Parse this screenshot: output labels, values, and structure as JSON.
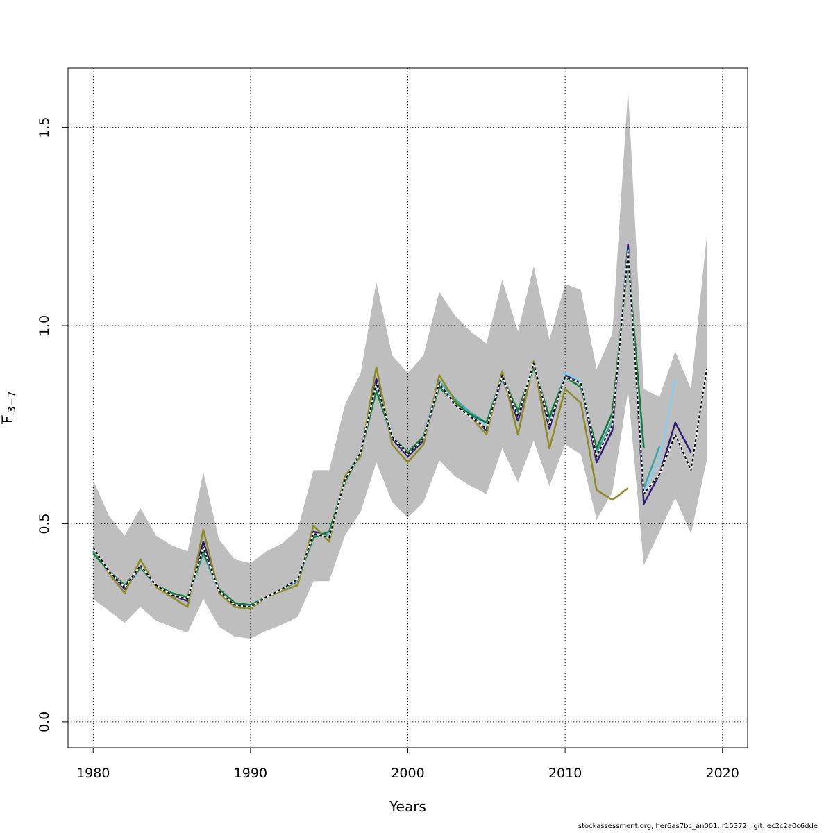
{
  "chart_data": {
    "type": "line",
    "xlabel": "Years",
    "ylabel": "F",
    "ylabel_subscript": "3−7",
    "xlim": [
      1978.4,
      2021.6
    ],
    "ylim": [
      -0.065,
      1.65
    ],
    "x_ticks": [
      1980,
      1990,
      2000,
      2010,
      2020
    ],
    "y_ticks": [
      0.0,
      0.5,
      1.0,
      1.5
    ],
    "x_tick_labels": [
      "1980",
      "1990",
      "2000",
      "2010",
      "2020"
    ],
    "y_tick_labels": [
      "0.0",
      "0.5",
      "1.0",
      "1.5"
    ],
    "grid": true,
    "confidence_band": {
      "color": "#bebebe",
      "x": [
        1980,
        1981,
        1982,
        1983,
        1984,
        1985,
        1986,
        1987,
        1988,
        1989,
        1990,
        1991,
        1992,
        1993,
        1994,
        1995,
        1996,
        1997,
        1998,
        1999,
        2000,
        2001,
        2002,
        2003,
        2004,
        2005,
        2006,
        2007,
        2008,
        2009,
        2010,
        2011,
        2012,
        2013,
        2014,
        2015,
        2016,
        2017,
        2018,
        2019
      ],
      "upper": [
        0.61,
        0.52,
        0.47,
        0.54,
        0.47,
        0.445,
        0.43,
        0.63,
        0.46,
        0.41,
        0.4,
        0.43,
        0.45,
        0.485,
        0.635,
        0.635,
        0.8,
        0.88,
        1.11,
        0.925,
        0.88,
        0.925,
        1.085,
        1.025,
        0.985,
        0.955,
        1.115,
        0.985,
        1.15,
        0.965,
        1.105,
        1.09,
        0.89,
        0.98,
        1.595,
        0.84,
        0.82,
        0.935,
        0.84,
        1.225
      ],
      "lower": [
        0.31,
        0.28,
        0.25,
        0.29,
        0.255,
        0.24,
        0.225,
        0.31,
        0.24,
        0.215,
        0.21,
        0.23,
        0.245,
        0.265,
        0.355,
        0.355,
        0.47,
        0.53,
        0.655,
        0.555,
        0.515,
        0.555,
        0.66,
        0.62,
        0.595,
        0.575,
        0.69,
        0.605,
        0.71,
        0.595,
        0.7,
        0.675,
        0.51,
        0.58,
        0.835,
        0.395,
        0.48,
        0.565,
        0.475,
        0.66
      ]
    },
    "series": [
      {
        "color": "#000000",
        "dashed": true,
        "x": [
          1980,
          1981,
          1982,
          1983,
          1984,
          1985,
          1986,
          1987,
          1988,
          1989,
          1990,
          1991,
          1992,
          1993,
          1994,
          1995,
          1996,
          1997,
          1998,
          1999,
          2000,
          2001,
          2002,
          2003,
          2004,
          2005,
          2006,
          2007,
          2008,
          2009,
          2010,
          2011,
          2012,
          2013,
          2014,
          2015,
          2016,
          2017,
          2018,
          2019
        ],
        "values": [
          0.44,
          0.38,
          0.34,
          0.395,
          0.345,
          0.32,
          0.31,
          0.44,
          0.33,
          0.295,
          0.29,
          0.315,
          0.335,
          0.36,
          0.475,
          0.465,
          0.61,
          0.68,
          0.855,
          0.72,
          0.675,
          0.715,
          0.855,
          0.8,
          0.77,
          0.74,
          0.875,
          0.77,
          0.905,
          0.75,
          0.87,
          0.855,
          0.67,
          0.75,
          1.185,
          0.575,
          0.625,
          0.725,
          0.635,
          0.89
        ]
      },
      {
        "color": "#2e1a73",
        "x": [
          1980,
          1981,
          1982,
          1983,
          1984,
          1985,
          1986,
          1987,
          1988,
          1989,
          1990,
          1991,
          1992,
          1993,
          1994,
          1995,
          1996,
          1997,
          1998,
          1999,
          2000,
          2001,
          2002,
          2003,
          2004,
          2005,
          2006,
          2007,
          2008,
          2009,
          2010,
          2011,
          2012,
          2013,
          2014,
          2015,
          2016,
          2017,
          2018
        ],
        "values": [
          0.44,
          0.38,
          0.335,
          0.39,
          0.345,
          0.32,
          0.305,
          0.455,
          0.33,
          0.295,
          0.29,
          0.315,
          0.335,
          0.355,
          0.48,
          0.47,
          0.61,
          0.68,
          0.865,
          0.715,
          0.67,
          0.71,
          0.85,
          0.805,
          0.775,
          0.735,
          0.87,
          0.76,
          0.905,
          0.74,
          0.875,
          0.855,
          0.655,
          0.735,
          1.205,
          0.55,
          0.625,
          0.755,
          0.68
        ]
      },
      {
        "color": "#87ceeb",
        "x": [
          1980,
          1981,
          1982,
          1983,
          1984,
          1985,
          1986,
          1987,
          1988,
          1989,
          1990,
          1991,
          1992,
          1993,
          1994,
          1995,
          1996,
          1997,
          1998,
          1999,
          2000,
          2001,
          2002,
          2003,
          2004,
          2005,
          2006,
          2007,
          2008,
          2009,
          2010,
          2011,
          2012,
          2013,
          2014,
          2015,
          2016,
          2017
        ],
        "values": [
          0.435,
          0.38,
          0.34,
          0.395,
          0.345,
          0.322,
          0.31,
          0.44,
          0.33,
          0.297,
          0.29,
          0.315,
          0.335,
          0.357,
          0.475,
          0.47,
          0.61,
          0.68,
          0.85,
          0.72,
          0.675,
          0.715,
          0.86,
          0.81,
          0.775,
          0.75,
          0.875,
          0.775,
          0.905,
          0.76,
          0.88,
          0.86,
          0.67,
          0.755,
          1.19,
          0.58,
          0.66,
          0.865
        ]
      },
      {
        "color": "#3aa5a5",
        "x": [
          1980,
          1981,
          1982,
          1983,
          1984,
          1985,
          1986,
          1987,
          1988,
          1989,
          1990,
          1991,
          1992,
          1993,
          1994,
          1995,
          1996,
          1997,
          1998,
          1999,
          2000,
          2001,
          2002,
          2003,
          2004,
          2005,
          2006,
          2007,
          2008,
          2009,
          2010,
          2011,
          2012,
          2013,
          2014,
          2015,
          2016
        ],
        "values": [
          0.43,
          0.38,
          0.34,
          0.39,
          0.345,
          0.322,
          0.312,
          0.425,
          0.33,
          0.298,
          0.29,
          0.315,
          0.335,
          0.358,
          0.47,
          0.47,
          0.615,
          0.68,
          0.835,
          0.72,
          0.68,
          0.72,
          0.86,
          0.815,
          0.78,
          0.755,
          0.875,
          0.78,
          0.9,
          0.765,
          0.87,
          0.855,
          0.68,
          0.76,
          1.17,
          0.59,
          0.695
        ]
      },
      {
        "color": "#8b8b24",
        "x": [
          1980,
          1981,
          1982,
          1983,
          1984,
          1985,
          1986,
          1987,
          1988,
          1989,
          1990,
          1991,
          1992,
          1993,
          1994,
          1995,
          1996,
          1997,
          1998,
          1999,
          2000,
          2001,
          2002,
          2003,
          2004,
          2005,
          2006,
          2007,
          2008,
          2009,
          2010,
          2011,
          2012,
          2013,
          2014
        ],
        "values": [
          0.44,
          0.375,
          0.325,
          0.41,
          0.34,
          0.315,
          0.29,
          0.485,
          0.325,
          0.29,
          0.285,
          0.315,
          0.33,
          0.345,
          0.495,
          0.455,
          0.62,
          0.67,
          0.895,
          0.7,
          0.655,
          0.7,
          0.875,
          0.81,
          0.77,
          0.725,
          0.885,
          0.725,
          0.91,
          0.69,
          0.84,
          0.805,
          0.585,
          0.56,
          0.59
        ]
      },
      {
        "color": "#117a3c",
        "x": [
          1980,
          1981,
          1982,
          1983,
          1984,
          1985,
          1986,
          1987,
          1988,
          1989,
          1990,
          1991,
          1992,
          1993,
          1994,
          1995,
          1996,
          1997,
          1998,
          1999,
          2000,
          2001,
          2002,
          2003,
          2004,
          2005,
          2006,
          2007,
          2008,
          2009,
          2010,
          2011,
          2012,
          2013,
          2014,
          2015
        ],
        "values": [
          0.425,
          0.38,
          0.345,
          0.39,
          0.345,
          0.325,
          0.315,
          0.43,
          0.335,
          0.3,
          0.295,
          0.315,
          0.335,
          0.36,
          0.465,
          0.48,
          0.605,
          0.68,
          0.835,
          0.72,
          0.68,
          0.72,
          0.845,
          0.805,
          0.775,
          0.755,
          0.87,
          0.785,
          0.895,
          0.77,
          0.87,
          0.845,
          0.69,
          0.78,
          1.17,
          0.69
        ]
      }
    ]
  },
  "footer_text": "stockassessment.org, her6as7bc_an001, r15372 , git: ec2c2a0c6dde"
}
